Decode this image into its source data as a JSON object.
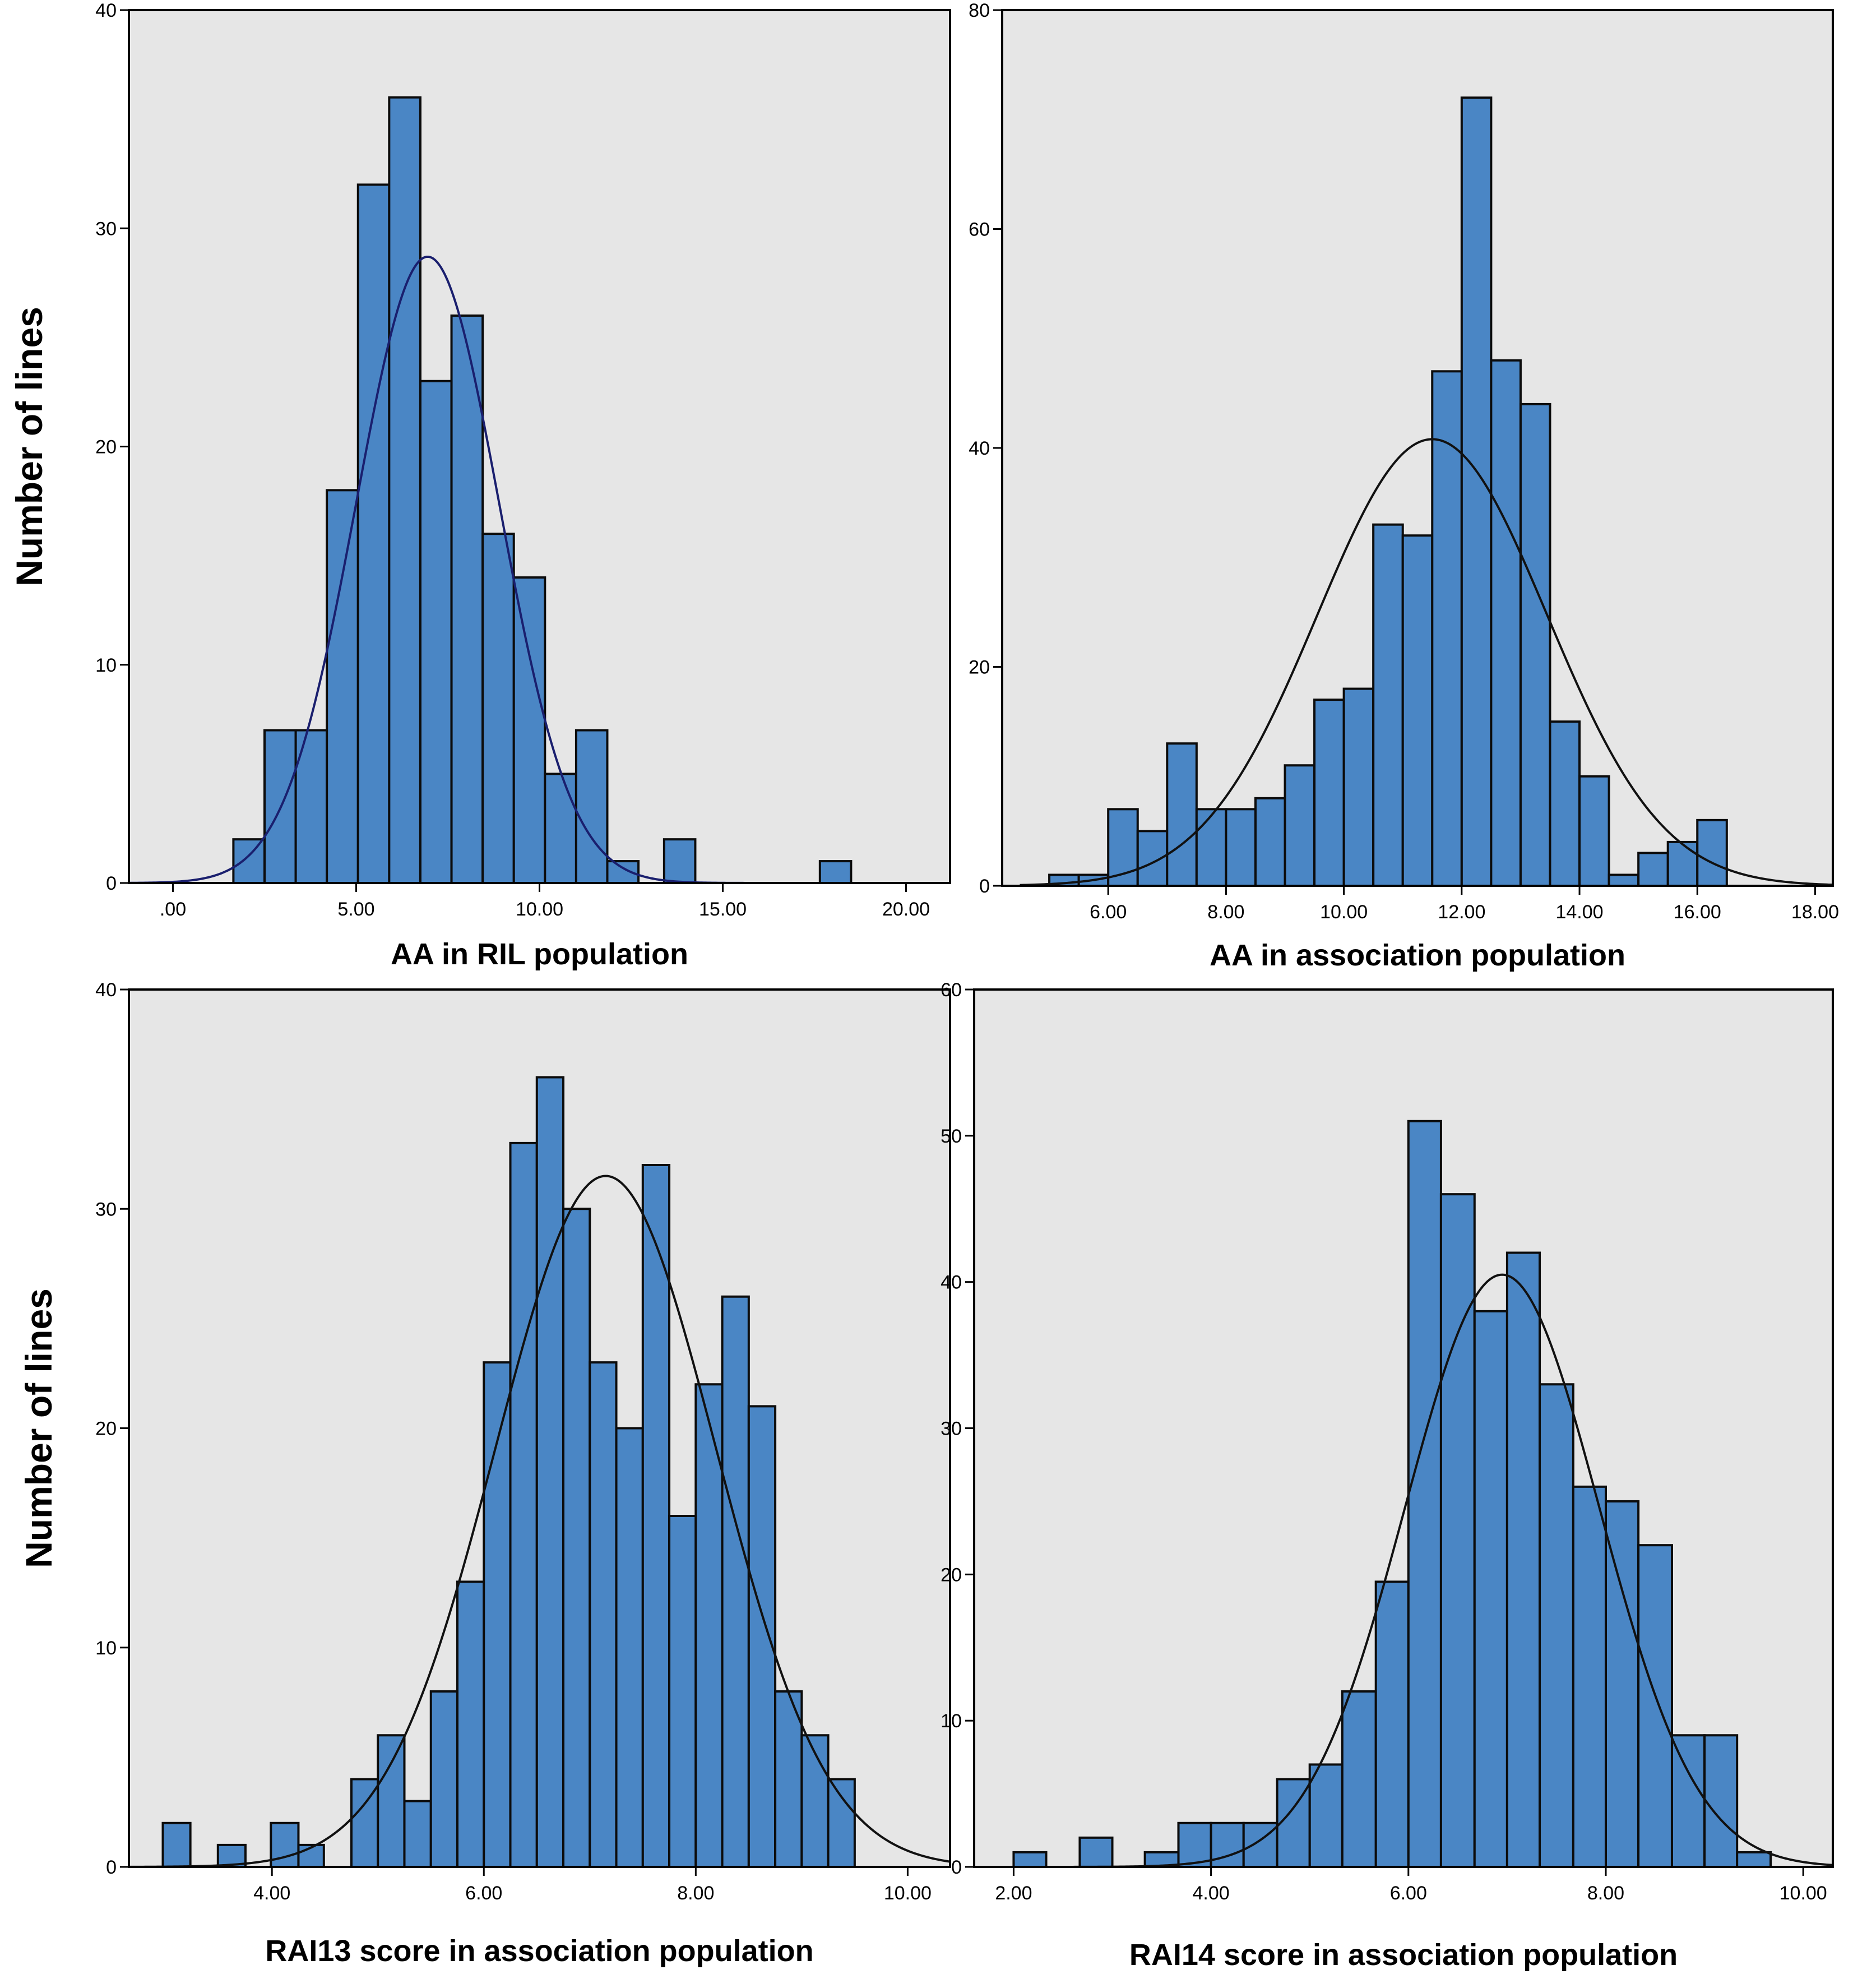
{
  "chart_data": [
    {
      "type": "bar",
      "xlabel": "AA in  RIL population",
      "ylabel": "Number of lines",
      "xlim": [
        -1.2,
        21.2
      ],
      "ylim": [
        0,
        40
      ],
      "xticks": [
        {
          "v": 0,
          "t": ".00"
        },
        {
          "v": 5,
          "t": "5.00"
        },
        {
          "v": 10,
          "t": "10.00"
        },
        {
          "v": 15,
          "t": "15.00"
        },
        {
          "v": 20,
          "t": "20.00"
        }
      ],
      "yticks": [
        0,
        10,
        20,
        30,
        40
      ],
      "bins": [
        {
          "x0": 1.65,
          "x1": 2.5,
          "y": 2
        },
        {
          "x0": 2.5,
          "x1": 3.35,
          "y": 7
        },
        {
          "x0": 3.35,
          "x1": 4.2,
          "y": 7
        },
        {
          "x0": 4.2,
          "x1": 5.05,
          "y": 18
        },
        {
          "x0": 5.05,
          "x1": 5.9,
          "y": 32
        },
        {
          "x0": 5.9,
          "x1": 6.75,
          "y": 36
        },
        {
          "x0": 6.75,
          "x1": 7.6,
          "y": 23
        },
        {
          "x0": 7.6,
          "x1": 8.45,
          "y": 26
        },
        {
          "x0": 8.45,
          "x1": 9.3,
          "y": 16
        },
        {
          "x0": 9.3,
          "x1": 10.15,
          "y": 14
        },
        {
          "x0": 10.15,
          "x1": 11.0,
          "y": 5
        },
        {
          "x0": 11.0,
          "x1": 11.85,
          "y": 7
        },
        {
          "x0": 11.85,
          "x1": 12.7,
          "y": 1
        },
        {
          "x0": 13.4,
          "x1": 14.25,
          "y": 2
        },
        {
          "x0": 17.65,
          "x1": 18.5,
          "y": 1
        }
      ],
      "normal_curve": {
        "mean": 6.95,
        "sd": 1.95,
        "peak": 28.7,
        "x_start": -1.2,
        "x_end": 21.2,
        "color": "#1a1f6e"
      }
    },
    {
      "type": "bar",
      "xlabel": "AA in association population",
      "ylabel": "",
      "xlim": [
        4.2,
        18.3
      ],
      "ylim": [
        0,
        80
      ],
      "xticks": [
        {
          "v": 6,
          "t": "6.00"
        },
        {
          "v": 8,
          "t": "8.00"
        },
        {
          "v": 10,
          "t": "10.00"
        },
        {
          "v": 12,
          "t": "12.00"
        },
        {
          "v": 14,
          "t": "14.00"
        },
        {
          "v": 16,
          "t": "16.00"
        },
        {
          "v": 18,
          "t": "18.00"
        }
      ],
      "yticks": [
        0,
        20,
        40,
        60,
        80
      ],
      "bins": [
        {
          "x0": 5.0,
          "x1": 5.5,
          "y": 1
        },
        {
          "x0": 5.5,
          "x1": 6.0,
          "y": 1
        },
        {
          "x0": 6.0,
          "x1": 6.5,
          "y": 7
        },
        {
          "x0": 6.5,
          "x1": 7.0,
          "y": 5
        },
        {
          "x0": 7.0,
          "x1": 7.5,
          "y": 13
        },
        {
          "x0": 7.5,
          "x1": 8.0,
          "y": 7
        },
        {
          "x0": 8.0,
          "x1": 8.5,
          "y": 7
        },
        {
          "x0": 8.5,
          "x1": 9.0,
          "y": 8
        },
        {
          "x0": 9.0,
          "x1": 9.5,
          "y": 11
        },
        {
          "x0": 9.5,
          "x1": 10.0,
          "y": 17
        },
        {
          "x0": 10.0,
          "x1": 10.5,
          "y": 18
        },
        {
          "x0": 10.5,
          "x1": 11.0,
          "y": 33
        },
        {
          "x0": 11.0,
          "x1": 11.5,
          "y": 32
        },
        {
          "x0": 11.5,
          "x1": 12.0,
          "y": 47
        },
        {
          "x0": 12.0,
          "x1": 12.5,
          "y": 72
        },
        {
          "x0": 12.5,
          "x1": 13.0,
          "y": 48
        },
        {
          "x0": 13.0,
          "x1": 13.5,
          "y": 44
        },
        {
          "x0": 13.5,
          "x1": 14.0,
          "y": 15
        },
        {
          "x0": 14.0,
          "x1": 14.5,
          "y": 10
        },
        {
          "x0": 14.5,
          "x1": 15.0,
          "y": 1
        },
        {
          "x0": 15.0,
          "x1": 15.5,
          "y": 3
        },
        {
          "x0": 15.5,
          "x1": 16.0,
          "y": 4
        },
        {
          "x0": 16.0,
          "x1": 16.5,
          "y": 6
        }
      ],
      "normal_curve": {
        "mean": 11.5,
        "sd": 1.95,
        "peak": 40.8,
        "x_start": 4.5,
        "x_end": 18.3,
        "color": "#111111"
      }
    },
    {
      "type": "bar",
      "xlabel": "RAI13 score in association population",
      "ylabel": "Number of lines",
      "xlim": [
        2.65,
        10.4
      ],
      "ylim": [
        0,
        40
      ],
      "xticks": [
        {
          "v": 4,
          "t": "4.00"
        },
        {
          "v": 6,
          "t": "6.00"
        },
        {
          "v": 8,
          "t": "8.00"
        },
        {
          "v": 10,
          "t": "10.00"
        }
      ],
      "yticks": [
        0,
        10,
        20,
        30,
        40
      ],
      "bins": [
        {
          "x0": 2.97,
          "x1": 3.23,
          "y": 2
        },
        {
          "x0": 3.49,
          "x1": 3.75,
          "y": 1
        },
        {
          "x0": 3.99,
          "x1": 4.25,
          "y": 2
        },
        {
          "x0": 4.25,
          "x1": 4.49,
          "y": 1
        },
        {
          "x0": 4.75,
          "x1": 5.0,
          "y": 4
        },
        {
          "x0": 5.0,
          "x1": 5.25,
          "y": 6
        },
        {
          "x0": 5.25,
          "x1": 5.5,
          "y": 3
        },
        {
          "x0": 5.5,
          "x1": 5.75,
          "y": 8
        },
        {
          "x0": 5.75,
          "x1": 6.0,
          "y": 13
        },
        {
          "x0": 6.0,
          "x1": 6.25,
          "y": 23
        },
        {
          "x0": 6.25,
          "x1": 6.5,
          "y": 33
        },
        {
          "x0": 6.5,
          "x1": 6.75,
          "y": 36
        },
        {
          "x0": 6.75,
          "x1": 7.0,
          "y": 30
        },
        {
          "x0": 7.0,
          "x1": 7.25,
          "y": 23
        },
        {
          "x0": 7.25,
          "x1": 7.5,
          "y": 20
        },
        {
          "x0": 7.5,
          "x1": 7.75,
          "y": 32
        },
        {
          "x0": 7.75,
          "x1": 8.0,
          "y": 16
        },
        {
          "x0": 8.0,
          "x1": 8.25,
          "y": 22
        },
        {
          "x0": 8.25,
          "x1": 8.5,
          "y": 26
        },
        {
          "x0": 8.5,
          "x1": 8.75,
          "y": 21
        },
        {
          "x0": 8.75,
          "x1": 9.0,
          "y": 8
        },
        {
          "x0": 9.0,
          "x1": 9.25,
          "y": 6
        },
        {
          "x0": 9.25,
          "x1": 9.5,
          "y": 4
        }
      ],
      "normal_curve": {
        "mean": 7.15,
        "sd": 1.04,
        "peak": 31.5,
        "x_start": 2.65,
        "x_end": 10.4,
        "color": "#111111"
      }
    },
    {
      "type": "bar",
      "xlabel": "RAI14 score in association population",
      "ylabel": "",
      "xlim": [
        1.6,
        10.3
      ],
      "ylim": [
        0,
        60
      ],
      "xticks": [
        {
          "v": 2,
          "t": "2.00"
        },
        {
          "v": 4,
          "t": "4.00"
        },
        {
          "v": 6,
          "t": "6.00"
        },
        {
          "v": 8,
          "t": "8.00"
        },
        {
          "v": 10,
          "t": "10.00"
        }
      ],
      "yticks": [
        0,
        10,
        20,
        30,
        40,
        50,
        60
      ],
      "bins": [
        {
          "x0": 2.0,
          "x1": 2.33,
          "y": 1
        },
        {
          "x0": 2.67,
          "x1": 3.0,
          "y": 2
        },
        {
          "x0": 3.33,
          "x1": 3.67,
          "y": 1
        },
        {
          "x0": 3.67,
          "x1": 4.0,
          "y": 3
        },
        {
          "x0": 4.0,
          "x1": 4.33,
          "y": 3
        },
        {
          "x0": 4.33,
          "x1": 4.67,
          "y": 3
        },
        {
          "x0": 4.67,
          "x1": 5.0,
          "y": 6
        },
        {
          "x0": 5.0,
          "x1": 5.33,
          "y": 7
        },
        {
          "x0": 5.33,
          "x1": 5.67,
          "y": 12
        },
        {
          "x0": 5.67,
          "x1": 6.0,
          "y": 19.5
        },
        {
          "x0": 6.0,
          "x1": 6.33,
          "y": 51
        },
        {
          "x0": 6.33,
          "x1": 6.67,
          "y": 46
        },
        {
          "x0": 6.67,
          "x1": 7.0,
          "y": 38
        },
        {
          "x0": 7.0,
          "x1": 7.33,
          "y": 42
        },
        {
          "x0": 7.33,
          "x1": 7.67,
          "y": 33
        },
        {
          "x0": 7.67,
          "x1": 8.0,
          "y": 26
        },
        {
          "x0": 8.0,
          "x1": 8.33,
          "y": 25
        },
        {
          "x0": 8.33,
          "x1": 8.67,
          "y": 22
        },
        {
          "x0": 8.67,
          "x1": 9.0,
          "y": 9
        },
        {
          "x0": 9.0,
          "x1": 9.33,
          "y": 9
        },
        {
          "x0": 9.33,
          "x1": 9.67,
          "y": 1
        }
      ],
      "normal_curve": {
        "mean": 6.95,
        "sd": 0.985,
        "peak": 40.5,
        "x_start": 1.6,
        "x_end": 10.3,
        "color": "#111111"
      }
    }
  ],
  "style": {
    "plot_bg": "#e6e6e6",
    "bar_fill": "#4a86c5",
    "bar_edge": "#0c0c0c"
  }
}
